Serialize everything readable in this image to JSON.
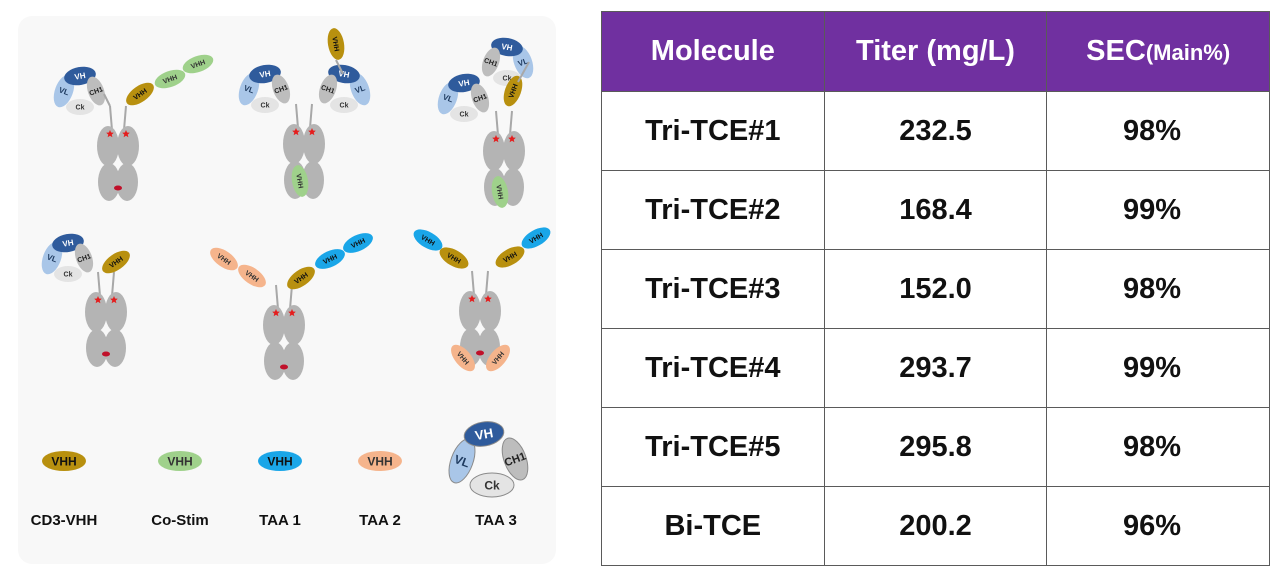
{
  "table": {
    "headers": [
      "Molecule",
      "Titer (mg/L)",
      "SEC"
    ],
    "sec_unit": "(Main%)",
    "rows": [
      {
        "molecule": "Tri-TCE#1",
        "titer": "232.5",
        "sec": "98%"
      },
      {
        "molecule": "Tri-TCE#2",
        "titer": "168.4",
        "sec": "99%"
      },
      {
        "molecule": "Tri-TCE#3",
        "titer": "152.0",
        "sec": "98%"
      },
      {
        "molecule": "Tri-TCE#4",
        "titer": "293.7",
        "sec": "99%"
      },
      {
        "molecule": "Tri-TCE#5",
        "titer": "295.8",
        "sec": "98%"
      },
      {
        "molecule": "Bi-TCE",
        "titer": "200.2",
        "sec": "96%"
      }
    ]
  },
  "domain_labels": {
    "vh": "VH",
    "vl": "VL",
    "ch1": "CH1",
    "ck": "Ck",
    "vhh": "VHH"
  },
  "legend": [
    {
      "label": "CD3-VHH",
      "color": "#b8900f",
      "type": "vhh"
    },
    {
      "label": "Co-Stim",
      "color": "#9fd18b",
      "type": "vhh"
    },
    {
      "label": "TAA 1",
      "color": "#1aa6e8",
      "type": "vhh"
    },
    {
      "label": "TAA 2",
      "color": "#f5b48c",
      "type": "vhh"
    },
    {
      "label": "TAA 3",
      "color": "#ffffff",
      "type": "fab"
    }
  ],
  "colors": {
    "header_bg": "#7030a0",
    "fc_gray": "#b4b4b4",
    "vh_blue": "#2f5b9c",
    "vl_lightblue": "#a9c6e8",
    "ch1_gray": "#bdbdbd",
    "ck_lightgray": "#e4e4e4",
    "cd3_vhh": "#b8900f",
    "costim_vhh": "#9fd18b",
    "taa1_vhh": "#1aa6e8",
    "taa2_vhh": "#f5b48c",
    "disulfide_star": "#e41e1e"
  }
}
